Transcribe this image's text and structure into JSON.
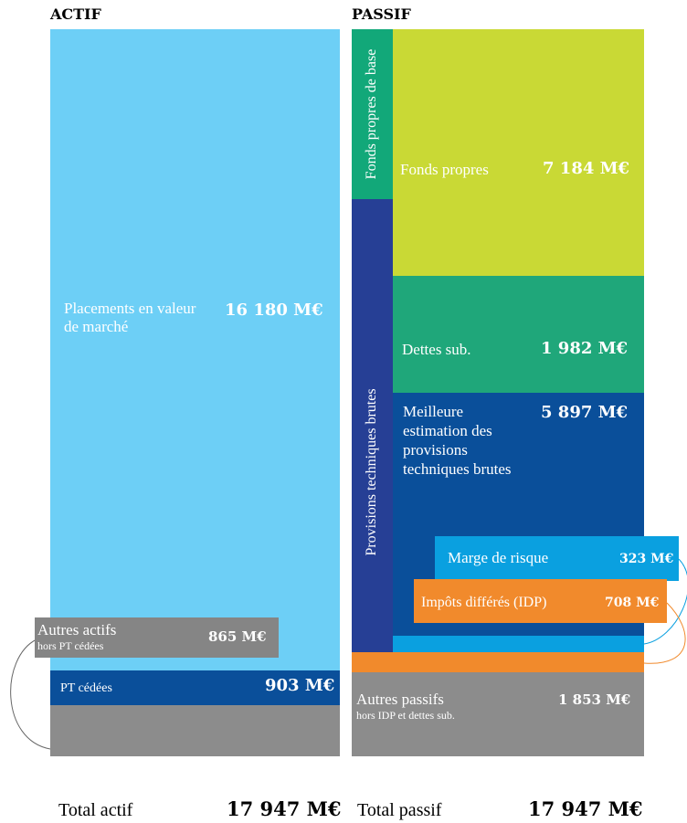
{
  "actif": {
    "heading": "ACTIF",
    "placements": {
      "label": "Placements en valeur de marché",
      "value": "16 180 M€"
    },
    "autres_actifs": {
      "label": "Autres actifs",
      "sublabel": "hors PT cédées",
      "value": "865 M€"
    },
    "pt_cedees": {
      "label": "PT cédées",
      "value": "903 M€"
    },
    "total": {
      "label": "Total actif",
      "value": "17 947 M€"
    }
  },
  "passif": {
    "heading": "PASSIF",
    "fonds_propres_de_base": "Fonds propres de base",
    "provisions_techniques_brutes": "Provisions techniques brutes",
    "fonds_propres": {
      "label": "Fonds propres",
      "value": "7 184 M€"
    },
    "dettes_sub": {
      "label": "Dettes sub.",
      "value": "1 982 M€"
    },
    "meilleure_estimation": {
      "label": "Meilleure estimation des provisions techniques brutes",
      "value": "5 897 M€"
    },
    "marge_de_risque": {
      "label": "Marge de risque",
      "value": "323 M€"
    },
    "impots_differes": {
      "label": "Impôts différés (IDP)",
      "value": "708 M€"
    },
    "autres_passifs": {
      "label": "Autres passifs",
      "sublabel": "hors IDP et dettes sub.",
      "value": "1 853 M€"
    },
    "total": {
      "label": "Total passif",
      "value": "17 947 M€"
    }
  }
}
